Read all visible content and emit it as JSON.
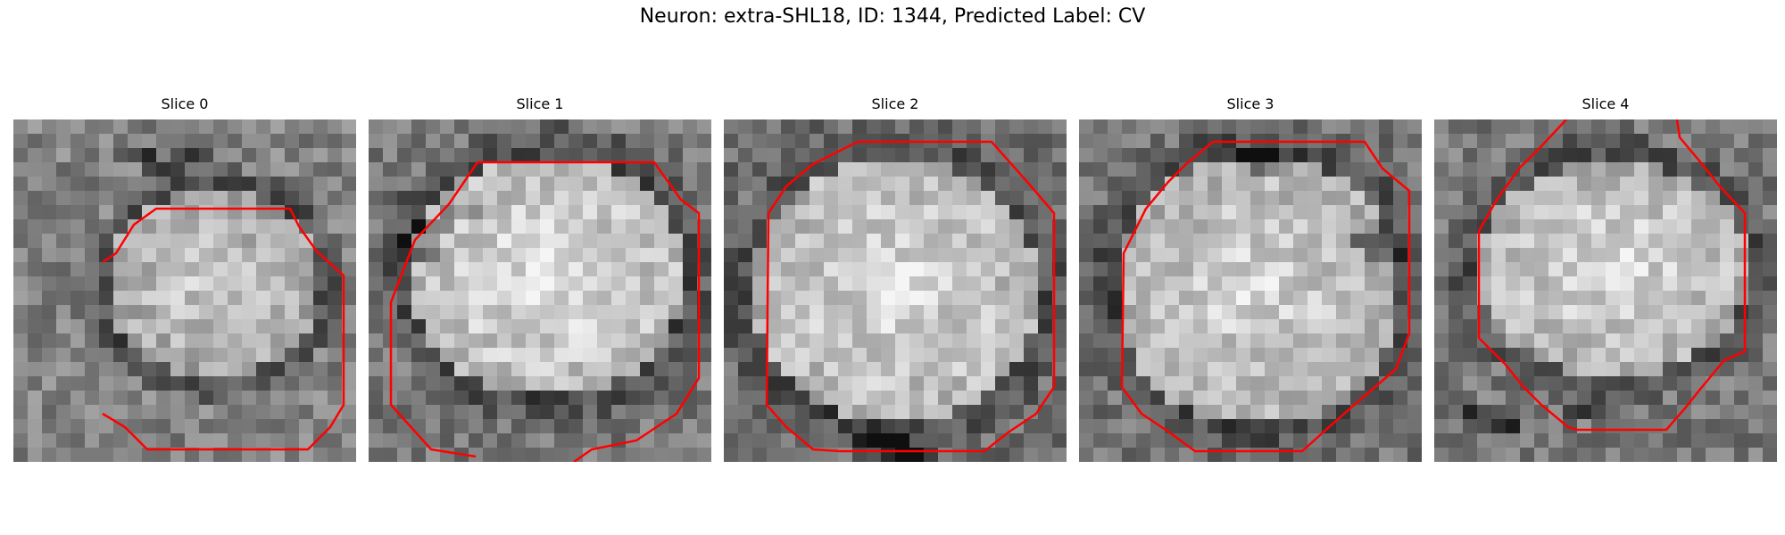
{
  "figure": {
    "title": "Neuron: extra-SHL18, ID: 1344, Predicted Label: CV"
  },
  "colors": {
    "contour": "#ff0000",
    "background": "#ffffff"
  },
  "panels": [
    {
      "title": "Slice 0"
    },
    {
      "title": "Slice 1"
    },
    {
      "title": "Slice 2"
    },
    {
      "title": "Slice 3"
    },
    {
      "title": "Slice 4"
    }
  ]
}
